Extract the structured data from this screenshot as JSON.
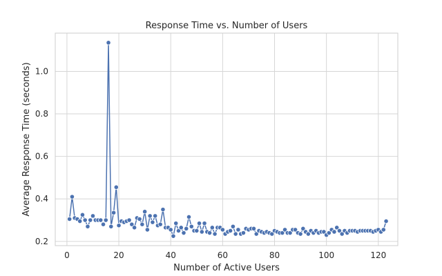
{
  "chart_data": {
    "type": "line",
    "title": "Response Time vs. Number of Users",
    "xlabel": "Number of Active Users",
    "ylabel": "Average Response Time (seconds)",
    "xlim": [
      -4.5,
      127.5
    ],
    "ylim": [
      0.18,
      1.18
    ],
    "xticks": [
      0,
      20,
      40,
      60,
      80,
      100,
      120
    ],
    "yticks": [
      0.2,
      0.4,
      0.6,
      0.8,
      1.0
    ],
    "ytick_labels": [
      "0.2",
      "0.4",
      "0.6",
      "0.8",
      "1.0"
    ],
    "grid": true,
    "color": "#4c72b0",
    "series": [
      {
        "x": [
          1,
          2,
          3,
          4,
          5,
          6,
          7,
          8,
          9,
          10,
          11,
          12,
          13,
          14,
          15,
          16,
          17,
          18,
          19,
          20,
          21,
          22,
          23,
          24,
          25,
          26,
          27,
          28,
          29,
          30,
          31,
          32,
          33,
          34,
          35,
          36,
          37,
          38,
          39,
          40,
          41,
          42,
          43,
          44,
          45,
          46,
          47,
          48,
          49,
          50,
          51,
          52,
          53,
          54,
          55,
          56,
          57,
          58,
          59,
          60,
          61,
          62,
          63,
          64,
          65,
          66,
          67,
          68,
          69,
          70,
          71,
          72,
          73,
          74,
          75,
          76,
          77,
          78,
          79,
          80,
          81,
          82,
          83,
          84,
          85,
          86,
          87,
          88,
          89,
          90,
          91,
          92,
          93,
          94,
          95,
          96,
          97,
          98,
          99,
          100,
          101,
          102,
          103,
          104,
          105,
          106,
          107,
          108,
          109,
          110,
          111,
          112,
          113,
          114,
          115,
          116,
          117,
          118,
          119,
          120,
          121,
          122,
          123
        ],
        "y": [
          0.305,
          0.41,
          0.31,
          0.305,
          0.295,
          0.325,
          0.3,
          0.27,
          0.3,
          0.32,
          0.3,
          0.3,
          0.3,
          0.28,
          0.3,
          1.135,
          0.27,
          0.335,
          0.455,
          0.275,
          0.295,
          0.29,
          0.295,
          0.3,
          0.28,
          0.265,
          0.31,
          0.305,
          0.28,
          0.34,
          0.255,
          0.32,
          0.29,
          0.32,
          0.275,
          0.28,
          0.35,
          0.265,
          0.265,
          0.255,
          0.225,
          0.285,
          0.25,
          0.265,
          0.24,
          0.26,
          0.315,
          0.27,
          0.25,
          0.25,
          0.285,
          0.245,
          0.285,
          0.245,
          0.24,
          0.265,
          0.235,
          0.265,
          0.265,
          0.255,
          0.235,
          0.245,
          0.25,
          0.27,
          0.235,
          0.255,
          0.235,
          0.24,
          0.26,
          0.255,
          0.26,
          0.26,
          0.235,
          0.25,
          0.245,
          0.24,
          0.245,
          0.24,
          0.235,
          0.25,
          0.245,
          0.24,
          0.24,
          0.255,
          0.24,
          0.24,
          0.255,
          0.255,
          0.24,
          0.235,
          0.26,
          0.245,
          0.235,
          0.25,
          0.24,
          0.25,
          0.24,
          0.245,
          0.245,
          0.23,
          0.24,
          0.255,
          0.245,
          0.265,
          0.25,
          0.235,
          0.25,
          0.24,
          0.25,
          0.25,
          0.25,
          0.245,
          0.25,
          0.25,
          0.25,
          0.25,
          0.25,
          0.245,
          0.25,
          0.255,
          0.245,
          0.255,
          0.295
        ]
      }
    ]
  }
}
